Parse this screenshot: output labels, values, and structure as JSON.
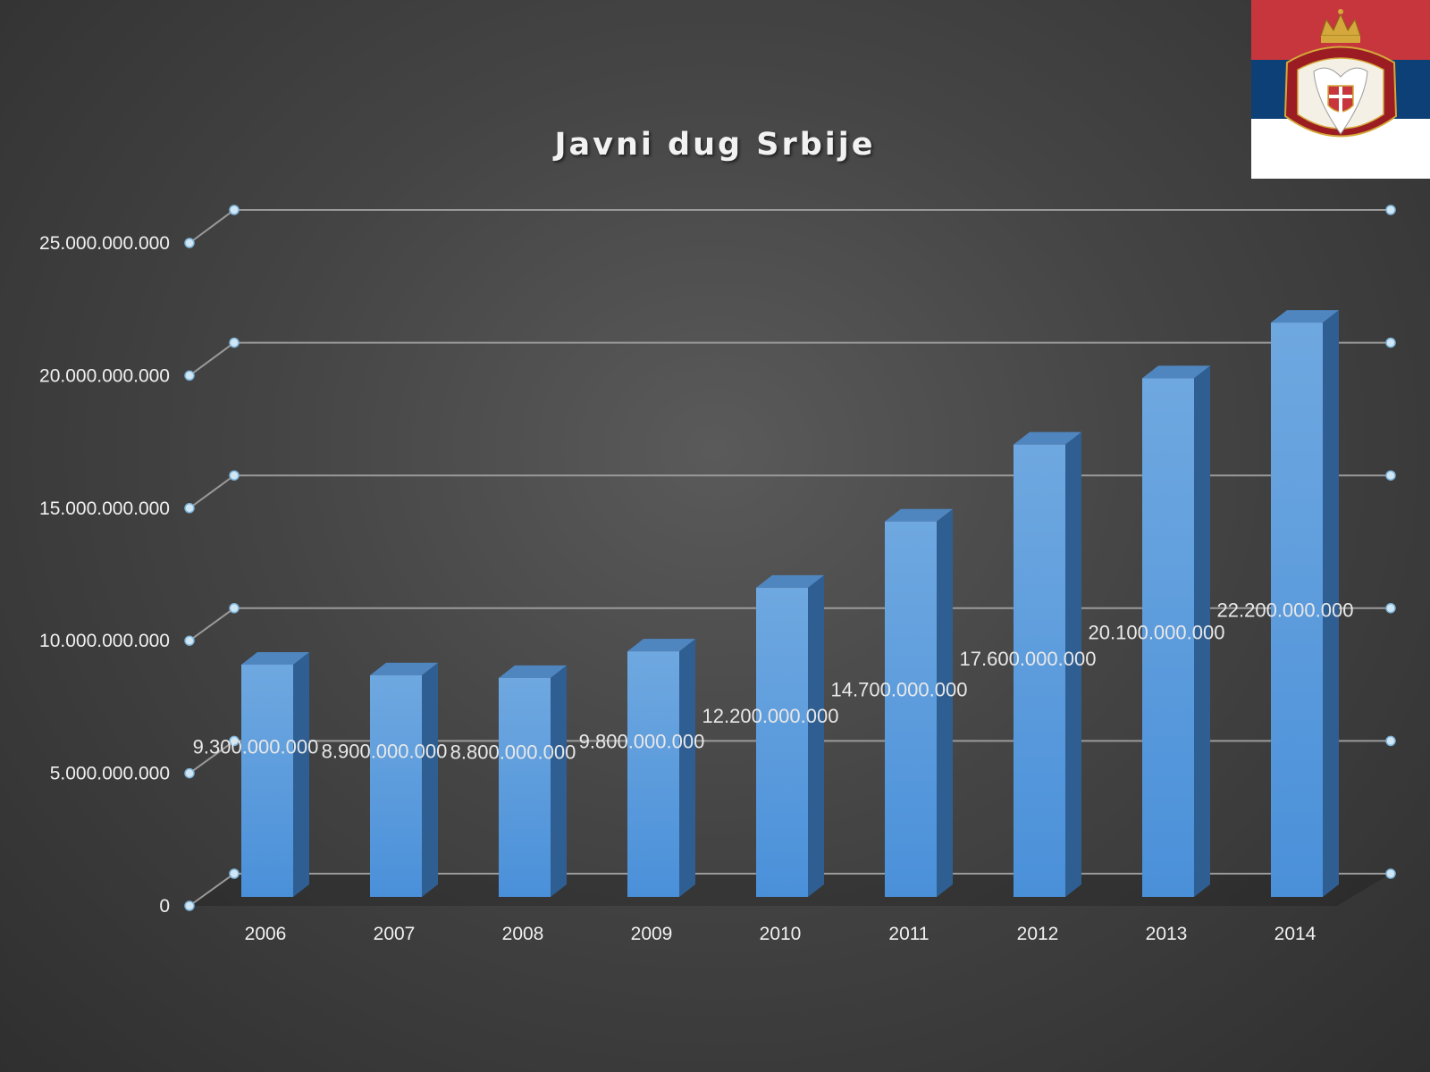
{
  "chart_data": {
    "type": "bar",
    "title": "Javni dug Srbije",
    "xlabel": "",
    "ylabel": "",
    "categories": [
      "2006",
      "2007",
      "2008",
      "2009",
      "2010",
      "2011",
      "2012",
      "2013",
      "2014"
    ],
    "values": [
      9300000000,
      8900000000,
      8800000000,
      9800000000,
      12200000000,
      14700000000,
      17600000000,
      20100000000,
      22200000000
    ],
    "data_labels": [
      "9.300.000.000",
      "8.900.000.000",
      "8.800.000.000",
      "9.800.000.000",
      "12.200.000.000",
      "14.700.000.000",
      "17.600.000.000",
      "20.100.000.000",
      "22.200.000.000"
    ],
    "ylim": [
      0,
      25000000000
    ],
    "y_ticks": [
      0,
      5000000000,
      10000000000,
      15000000000,
      20000000000,
      25000000000
    ],
    "y_tick_labels": [
      "0",
      "5.000.000.000",
      "10.000.000.000",
      "15.000.000.000",
      "20.000.000.000",
      "25.000.000.000"
    ],
    "grid": true,
    "style": "3d-column",
    "colors": {
      "bar_front": "#4a90d9",
      "bar_side": "#2f5f92",
      "bar_top": "#4f86c0",
      "gridline": "#9a9a9a",
      "axis_text": "#f0f0f0",
      "data_label_text": "#e8e8e8",
      "marker": "#cfe6f5"
    }
  },
  "decoration": {
    "flag_icon": "serbia-flag-with-coat-of-arms",
    "flag_colors": [
      "#c6363c",
      "#0c4076",
      "#ffffff"
    ]
  }
}
